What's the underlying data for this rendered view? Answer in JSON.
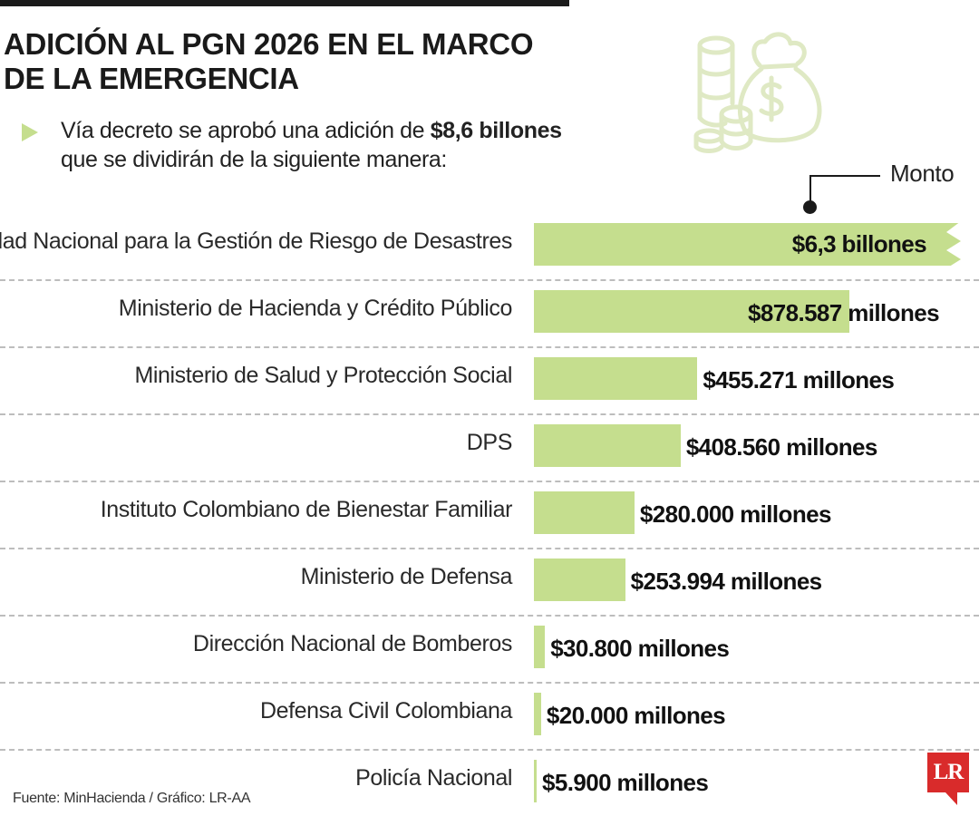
{
  "title_lines": [
    "ADICIÓN AL PGN 2026 EN EL MARCO",
    "DE LA EMERGENCIA"
  ],
  "intro": {
    "text_before": "Vía decreto se aprobó una adición de ",
    "highlight": "$8,6 billones",
    "text_after": "que se dividirán de la siguiente manera:"
  },
  "colors": {
    "bar": "#c5de8e",
    "text": "#1a1a1a",
    "divider": "#bdbdbd",
    "logo": "#d92b2b",
    "illustration": "#dfe9c4"
  },
  "icons": [
    "money-bag-icon",
    "coin-stack-icon",
    "dollar-sign-icon",
    "play-arrow-icon"
  ],
  "chart_data": {
    "type": "bar",
    "orientation": "horizontal",
    "title": "ADICIÓN AL PGN 2026 EN EL MARCO DE LA EMERGENCIA",
    "series_label": "Monto",
    "axis_break_on_first_bar": true,
    "categories": [
      "Unidad Nacional para la Gestión de Riesgo de Desastres",
      "Ministerio de Hacienda y Crédito Público",
      "Ministerio de Salud y Protección Social",
      "DPS",
      "Instituto Colombiano de Bienestar Familiar",
      "Ministerio de Defensa",
      "Dirección Nacional de Bomberos",
      "Defensa Civil Colombiana",
      "Policía Nacional"
    ],
    "values": [
      6300000,
      878587,
      455271,
      408560,
      280000,
      253994,
      30800,
      20000,
      5900
    ],
    "value_units": "millones de pesos",
    "labels": [
      "$6,3 billones",
      "$878.587 millones",
      "$455.271 millones",
      "$408.560 millones",
      "$280.000 millones",
      "$253.994 millones",
      "$30.800 millones",
      "$20.000 millones",
      "$5.900 millones"
    ]
  },
  "footer": {
    "source": "Fuente: MinHacienda / Gráfico: LR-AA",
    "logo_text": "LR"
  }
}
